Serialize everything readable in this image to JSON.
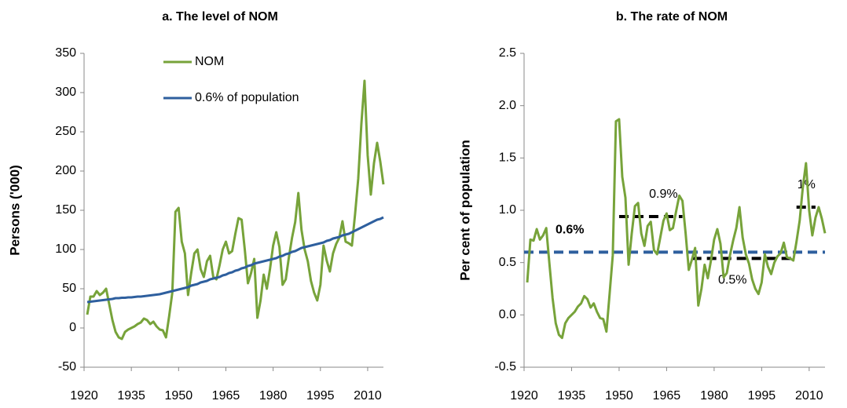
{
  "chart_data": [
    {
      "type": "line",
      "title": "a. The level of NOM",
      "y_label": "Persons ('000)",
      "x": [
        1921,
        1922,
        1923,
        1924,
        1925,
        1926,
        1927,
        1928,
        1929,
        1930,
        1931,
        1932,
        1933,
        1934,
        1935,
        1936,
        1937,
        1938,
        1939,
        1940,
        1941,
        1942,
        1943,
        1944,
        1945,
        1946,
        1947,
        1948,
        1949,
        1950,
        1951,
        1952,
        1953,
        1954,
        1955,
        1956,
        1957,
        1958,
        1959,
        1960,
        1961,
        1962,
        1963,
        1964,
        1965,
        1966,
        1967,
        1968,
        1969,
        1970,
        1971,
        1972,
        1973,
        1974,
        1975,
        1976,
        1977,
        1978,
        1979,
        1980,
        1981,
        1982,
        1983,
        1984,
        1985,
        1986,
        1987,
        1988,
        1989,
        1990,
        1991,
        1992,
        1993,
        1994,
        1995,
        1996,
        1997,
        1998,
        1999,
        2000,
        2001,
        2002,
        2003,
        2004,
        2005,
        2006,
        2007,
        2008,
        2009,
        2010,
        2011,
        2012,
        2013,
        2014,
        2015
      ],
      "series": [
        {
          "name": "NOM",
          "color": "#77a33a",
          "values": [
            17,
            40,
            40,
            47,
            42,
            45,
            50,
            30,
            10,
            -5,
            -12,
            -14,
            -5,
            -2,
            0,
            2,
            5,
            7,
            12,
            10,
            5,
            8,
            2,
            -2,
            -3,
            -12,
            15,
            45,
            148,
            153,
            110,
            95,
            42,
            70,
            95,
            100,
            75,
            65,
            85,
            92,
            65,
            62,
            80,
            100,
            110,
            95,
            98,
            120,
            140,
            138,
            100,
            57,
            70,
            88,
            13,
            35,
            68,
            50,
            75,
            105,
            122,
            103,
            55,
            62,
            90,
            115,
            135,
            172,
            125,
            100,
            85,
            60,
            45,
            35,
            55,
            105,
            86,
            72,
            95,
            107,
            115,
            136,
            110,
            108,
            105,
            145,
            190,
            260,
            315,
            220,
            170,
            210,
            236,
            212,
            183
          ]
        },
        {
          "name": "0.6% of population",
          "color": "#2e5f9e",
          "values": [
            33,
            33.5,
            34,
            34.5,
            35,
            35.5,
            36,
            36.5,
            37,
            38,
            38,
            38.5,
            38.5,
            39,
            39,
            39.5,
            40,
            40,
            40.5,
            41,
            41.5,
            42,
            42.5,
            43,
            44,
            45,
            46,
            47,
            48,
            49,
            50,
            51,
            52,
            54,
            55,
            56,
            58,
            59,
            60,
            62,
            63,
            64,
            65,
            67,
            68,
            70,
            71,
            73,
            74,
            76,
            77,
            79,
            80,
            82,
            83,
            84,
            85,
            86,
            87,
            88,
            89,
            91,
            92,
            94,
            95,
            97,
            98,
            100,
            102,
            103,
            104,
            105,
            106,
            107,
            108,
            109,
            111,
            112,
            114,
            115,
            116,
            118,
            119,
            120,
            122,
            124,
            126,
            128,
            130,
            132,
            134,
            136,
            138,
            139,
            141
          ]
        }
      ],
      "xlim": [
        1920,
        2015
      ],
      "xticks": [
        1920,
        1935,
        1950,
        1965,
        1980,
        1995,
        2010
      ],
      "ylim": [
        -50,
        350
      ],
      "yticks": [
        -50,
        0,
        50,
        100,
        150,
        200,
        250,
        300,
        350
      ],
      "legend": "top-left"
    },
    {
      "type": "line",
      "title": "b. The rate of NOM",
      "y_label": "Per cent of population",
      "x": [
        1921,
        1922,
        1923,
        1924,
        1925,
        1926,
        1927,
        1928,
        1929,
        1930,
        1931,
        1932,
        1933,
        1934,
        1935,
        1936,
        1937,
        1938,
        1939,
        1940,
        1941,
        1942,
        1943,
        1944,
        1945,
        1946,
        1947,
        1948,
        1949,
        1950,
        1951,
        1952,
        1953,
        1954,
        1955,
        1956,
        1957,
        1958,
        1959,
        1960,
        1961,
        1962,
        1963,
        1964,
        1965,
        1966,
        1967,
        1968,
        1969,
        1970,
        1971,
        1972,
        1973,
        1974,
        1975,
        1976,
        1977,
        1978,
        1979,
        1980,
        1981,
        1982,
        1983,
        1984,
        1985,
        1986,
        1987,
        1988,
        1989,
        1990,
        1991,
        1992,
        1993,
        1994,
        1995,
        1996,
        1997,
        1998,
        1999,
        2000,
        2001,
        2002,
        2003,
        2004,
        2005,
        2006,
        2007,
        2008,
        2009,
        2010,
        2011,
        2012,
        2013,
        2014,
        2015
      ],
      "color": "#77a33a",
      "values": [
        0.31,
        0.72,
        0.71,
        0.82,
        0.72,
        0.76,
        0.83,
        0.49,
        0.16,
        -0.08,
        -0.19,
        -0.22,
        -0.08,
        -0.03,
        0,
        0.03,
        0.08,
        0.11,
        0.18,
        0.15,
        0.07,
        0.11,
        0.03,
        -0.03,
        -0.04,
        -0.16,
        0.2,
        0.57,
        1.85,
        1.87,
        1.32,
        1.12,
        0.48,
        0.78,
        1.04,
        1.07,
        0.78,
        0.66,
        0.85,
        0.89,
        0.62,
        0.58,
        0.74,
        0.9,
        0.97,
        0.81,
        0.83,
        0.99,
        1.14,
        1.09,
        0.78,
        0.43,
        0.53,
        0.64,
        0.09,
        0.25,
        0.48,
        0.35,
        0.52,
        0.72,
        0.82,
        0.68,
        0.36,
        0.4,
        0.57,
        0.71,
        0.83,
        1.03,
        0.74,
        0.58,
        0.49,
        0.34,
        0.25,
        0.2,
        0.31,
        0.58,
        0.46,
        0.39,
        0.5,
        0.56,
        0.59,
        0.69,
        0.55,
        0.54,
        0.52,
        0.7,
        0.9,
        1.22,
        1.45,
        1.0,
        0.76,
        0.93,
        1.03,
        0.92,
        0.78
      ],
      "reference_lines": [
        {
          "value": 0.6,
          "label": "0.6%",
          "color": "#2e5f9e",
          "x": [
            1920,
            2015
          ]
        },
        {
          "value": 0.94,
          "label": "0.9%",
          "color": "#000000",
          "x": [
            1950,
            1970
          ]
        },
        {
          "value": 0.54,
          "label": "0.5%",
          "color": "#000000",
          "x": [
            1973,
            2005
          ]
        },
        {
          "value": 1.03,
          "label": "1%",
          "color": "#000000",
          "x": [
            2006,
            2012
          ]
        }
      ],
      "xlim": [
        1920,
        2015
      ],
      "xticks": [
        1920,
        1935,
        1950,
        1965,
        1980,
        1995,
        2010
      ],
      "ylim": [
        -0.5,
        2.5
      ],
      "yticks": [
        -0.5,
        {
          "value": 0,
          "label": "0.0"
        },
        0.5,
        {
          "value": 1,
          "label": "1.0"
        },
        1.5,
        {
          "value": 2,
          "label": "2.0"
        },
        2.5
      ]
    }
  ]
}
